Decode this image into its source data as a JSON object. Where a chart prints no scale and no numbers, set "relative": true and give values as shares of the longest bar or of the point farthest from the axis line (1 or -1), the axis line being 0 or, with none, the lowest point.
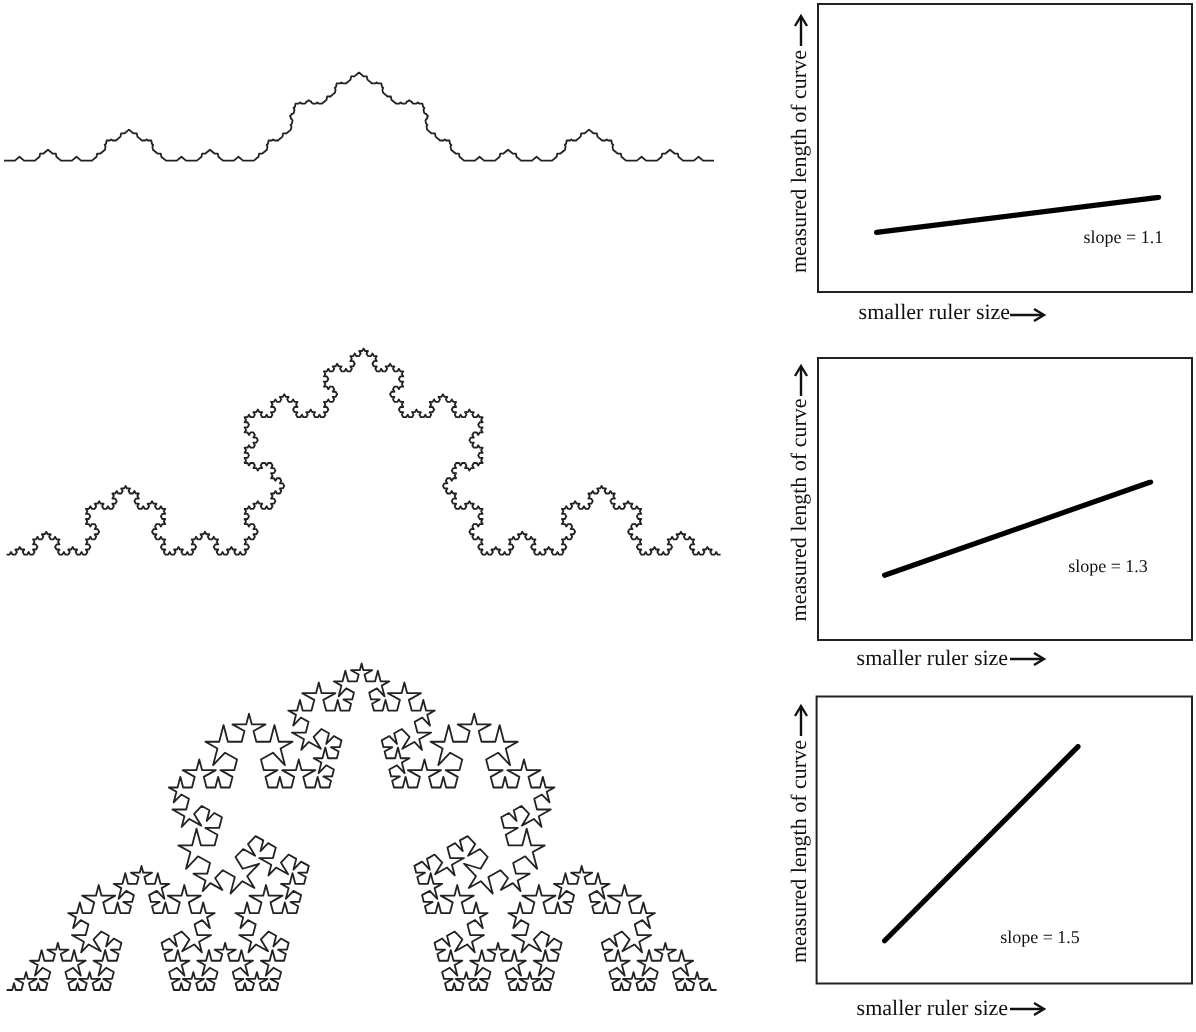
{
  "chart_data": [
    {
      "type": "line",
      "relative": true,
      "categories": [
        null,
        null
      ],
      "values": [
        0.63,
        1
      ],
      "color": "#000000",
      "xlabel": "smaller ruler size",
      "ylabel": "measured length of curve",
      "annotations": [
        "slope = 1.1"
      ],
      "marker": "none",
      "line_style": "solid"
    },
    {
      "type": "line",
      "relative": true,
      "categories": [
        null,
        null
      ],
      "values": [
        0.41,
        1
      ],
      "color": "#000000",
      "xlabel": "smaller ruler size",
      "ylabel": "measured length of curve",
      "annotations": [
        "slope = 1.3"
      ],
      "marker": "none",
      "line_style": "solid"
    },
    {
      "type": "line",
      "relative": true,
      "categories": [
        null,
        null
      ],
      "values": [
        0.18,
        1
      ],
      "color": "#000000",
      "xlabel": "smaller ruler size",
      "ylabel": "measured length of curve",
      "annotations": [
        "slope = 1.5"
      ],
      "marker": "none",
      "line_style": "solid"
    }
  ]
}
